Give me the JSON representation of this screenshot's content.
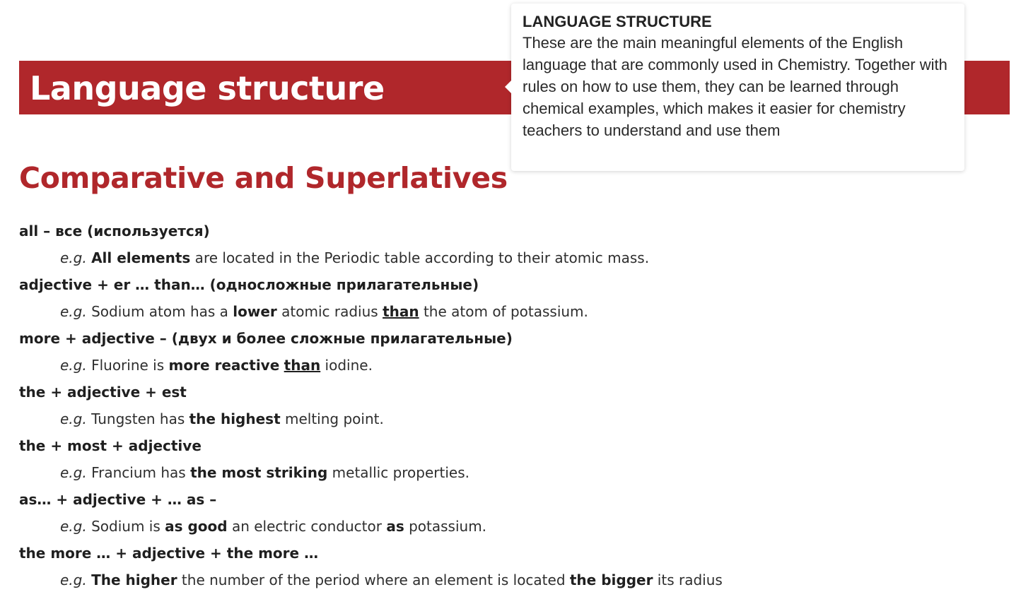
{
  "banner": {
    "title": "Language structure"
  },
  "section": {
    "title": "Comparative and Superlatives"
  },
  "tooltip": {
    "title": "LANGUAGE STRUCTURE",
    "body": "These are the main meaningful elements of the English language that are commonly used in Chemistry. Together with rules on how to use them, they can be learned through chemical examples, which makes it easier for chemistry teachers to understand and use them"
  },
  "eg_label": "e.g.",
  "rules": [
    {
      "head": "all – все (используется)",
      "example": [
        {
          "t": "All elements",
          "s": "b"
        },
        {
          "t": " are located in the Periodic table according to their atomic mass.",
          "s": "n"
        }
      ]
    },
    {
      "head": "adjective + er … than… (односложные прилагательные)",
      "example": [
        {
          "t": "Sodium atom has a ",
          "s": "n"
        },
        {
          "t": "lower",
          "s": "b"
        },
        {
          "t": " atomic radius ",
          "s": "n"
        },
        {
          "t": "than",
          "s": "u"
        },
        {
          "t": " the atom of potassium.",
          "s": "n"
        }
      ]
    },
    {
      "head": "more + adjective – (двух и более сложные прилагательные)",
      "example": [
        {
          "t": "Fluorine is ",
          "s": "n"
        },
        {
          "t": "more reactive",
          "s": "b"
        },
        {
          "t": " ",
          "s": "n"
        },
        {
          "t": "than",
          "s": "u"
        },
        {
          "t": " iodine.",
          "s": "n"
        }
      ]
    },
    {
      "head": "the + adjective + est",
      "example": [
        {
          "t": "Tungsten has ",
          "s": "n"
        },
        {
          "t": "the highest",
          "s": "b"
        },
        {
          "t": " melting point.",
          "s": "n"
        }
      ]
    },
    {
      "head": "the + most + adjective",
      "example": [
        {
          "t": "Francium has ",
          "s": "n"
        },
        {
          "t": "the most striking",
          "s": "b"
        },
        {
          "t": " metallic properties.",
          "s": "n"
        }
      ]
    },
    {
      "head": "as… + adjective + … as –",
      "example": [
        {
          "t": "Sodium is ",
          "s": "n"
        },
        {
          "t": "as good",
          "s": "b"
        },
        {
          "t": " an electric conductor ",
          "s": "n"
        },
        {
          "t": "as",
          "s": "b"
        },
        {
          "t": " potassium.",
          "s": "n"
        }
      ]
    },
    {
      "head": "the more … + adjective + the more …",
      "example": [
        {
          "t": "The higher",
          "s": "b"
        },
        {
          "t": " the number of the period where an element is located ",
          "s": "n"
        },
        {
          "t": "the bigger",
          "s": "b"
        },
        {
          "t": " its radius",
          "s": "n"
        }
      ]
    }
  ]
}
